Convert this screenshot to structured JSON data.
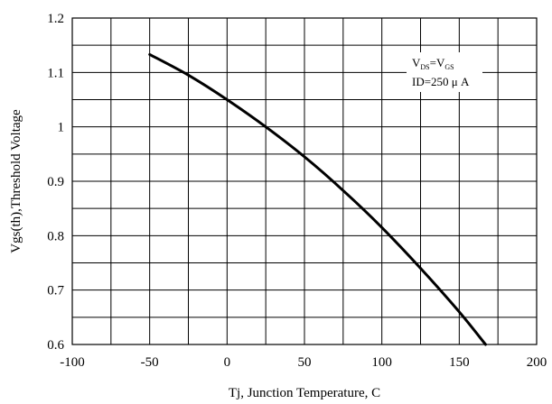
{
  "chart_data": {
    "type": "line",
    "xlabel": "Tj, Junction Temperature, C",
    "ylabel": "Vgs(th),Threshold Voltage",
    "xlim": [
      -100,
      200
    ],
    "ylim": [
      0.6,
      1.2
    ],
    "x_ticks": [
      -100,
      -50,
      0,
      50,
      100,
      150,
      200
    ],
    "x_tick_labels": [
      "-100",
      "-50",
      "0",
      "50",
      "100",
      "150",
      "200"
    ],
    "y_ticks": [
      0.6,
      0.7,
      0.8,
      0.9,
      1.0,
      1.1,
      1.2
    ],
    "y_tick_labels": [
      "0.6",
      "0.7",
      "0.8",
      "0.9",
      "1",
      "1.1",
      "1.2"
    ],
    "grid": true,
    "x_grid_step": 25,
    "y_grid_step": 0.05,
    "annotation": {
      "line1": {
        "main_a": "V",
        "sub_a": "DS",
        "eq": "=V",
        "sub_b": "GS"
      },
      "line2": "ID=250 μ A"
    },
    "series": [
      {
        "x": [
          -50,
          -25,
          0,
          25,
          50,
          75,
          100,
          125,
          150,
          167
        ],
        "y": [
          1.133,
          1.095,
          1.05,
          1.0,
          0.945,
          0.883,
          0.815,
          0.74,
          0.66,
          0.6
        ]
      }
    ]
  }
}
